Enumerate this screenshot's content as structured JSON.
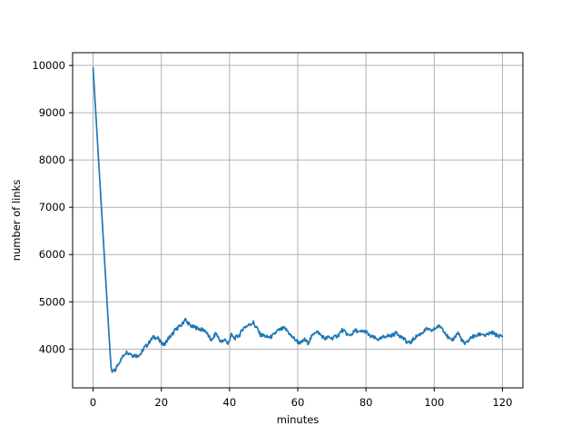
{
  "chart_data": {
    "type": "line",
    "title": "",
    "xlabel": "minutes",
    "ylabel": "number of links",
    "xlim": [
      -6,
      126
    ],
    "ylim": [
      3180,
      10270
    ],
    "xticks": [
      0,
      20,
      40,
      60,
      80,
      100,
      120
    ],
    "yticks": [
      4000,
      5000,
      6000,
      7000,
      8000,
      9000,
      10000
    ],
    "grid": true,
    "grid_color": "#b0b0b0",
    "spine_color": "#000000",
    "line_color": "#1f77b4",
    "line_width": 1.7,
    "legend": null,
    "noise": {
      "amplitude": 40,
      "start_t": 6,
      "subdivisions": 3
    },
    "points": [
      [
        0,
        9950
      ],
      [
        0.5,
        9345
      ],
      [
        1,
        8740
      ],
      [
        1.5,
        8135
      ],
      [
        2,
        7530
      ],
      [
        2.5,
        6925
      ],
      [
        3,
        6320
      ],
      [
        3.5,
        5715
      ],
      [
        4,
        5110
      ],
      [
        4.5,
        4505
      ],
      [
        5,
        3905
      ],
      [
        5.3,
        3600
      ],
      [
        5.6,
        3510
      ],
      [
        6,
        3565
      ],
      [
        6.4,
        3530
      ],
      [
        7,
        3635
      ],
      [
        7.5,
        3705
      ],
      [
        8,
        3760
      ],
      [
        8.5,
        3815
      ],
      [
        9,
        3875
      ],
      [
        9.5,
        3925
      ],
      [
        10,
        3940
      ],
      [
        10.5,
        3905
      ],
      [
        11,
        3920
      ],
      [
        11.5,
        3860
      ],
      [
        12,
        3875
      ],
      [
        12.5,
        3865
      ],
      [
        13,
        3855
      ],
      [
        13.5,
        3885
      ],
      [
        14,
        3900
      ],
      [
        14.5,
        3965
      ],
      [
        15,
        4035
      ],
      [
        15.5,
        4065
      ],
      [
        16,
        4095
      ],
      [
        16.5,
        4155
      ],
      [
        17,
        4195
      ],
      [
        17.5,
        4245
      ],
      [
        18,
        4260
      ],
      [
        18.5,
        4235
      ],
      [
        19,
        4230
      ],
      [
        19.5,
        4165
      ],
      [
        20,
        4150
      ],
      [
        20.5,
        4105
      ],
      [
        21,
        4095
      ],
      [
        21.5,
        4165
      ],
      [
        22,
        4225
      ],
      [
        22.5,
        4255
      ],
      [
        23,
        4295
      ],
      [
        23.5,
        4335
      ],
      [
        24,
        4400
      ],
      [
        24.5,
        4420
      ],
      [
        25,
        4480
      ],
      [
        25.5,
        4470
      ],
      [
        26,
        4515
      ],
      [
        26.5,
        4570
      ],
      [
        27,
        4650
      ],
      [
        27.5,
        4560
      ],
      [
        28,
        4550
      ],
      [
        28.5,
        4490
      ],
      [
        29,
        4480
      ],
      [
        29.5,
        4460
      ],
      [
        30,
        4465
      ],
      [
        30.5,
        4440
      ],
      [
        31,
        4435
      ],
      [
        31.5,
        4415
      ],
      [
        32,
        4410
      ],
      [
        32.5,
        4400
      ],
      [
        33,
        4385
      ],
      [
        33.5,
        4315
      ],
      [
        34,
        4255
      ],
      [
        34.5,
        4200
      ],
      [
        35,
        4195
      ],
      [
        35.5,
        4275
      ],
      [
        36,
        4345
      ],
      [
        36.5,
        4275
      ],
      [
        37,
        4205
      ],
      [
        37.5,
        4160
      ],
      [
        38,
        4145
      ],
      [
        38.5,
        4215
      ],
      [
        39,
        4185
      ],
      [
        39.5,
        4090
      ],
      [
        40,
        4200
      ],
      [
        40.5,
        4310
      ],
      [
        41,
        4255
      ],
      [
        41.5,
        4225
      ],
      [
        42,
        4255
      ],
      [
        42.5,
        4275
      ],
      [
        43,
        4305
      ],
      [
        43.5,
        4375
      ],
      [
        44,
        4445
      ],
      [
        44.5,
        4465
      ],
      [
        45,
        4485
      ],
      [
        45.5,
        4505
      ],
      [
        46,
        4525
      ],
      [
        46.5,
        4545
      ],
      [
        47,
        4565
      ],
      [
        47.5,
        4485
      ],
      [
        48,
        4455
      ],
      [
        48.5,
        4375
      ],
      [
        49,
        4305
      ],
      [
        49.5,
        4295
      ],
      [
        50,
        4285
      ],
      [
        50.5,
        4270
      ],
      [
        51,
        4255
      ],
      [
        51.5,
        4252
      ],
      [
        52,
        4250
      ],
      [
        52.5,
        4278
      ],
      [
        53,
        4305
      ],
      [
        53.5,
        4345
      ],
      [
        54,
        4385
      ],
      [
        54.5,
        4400
      ],
      [
        55,
        4415
      ],
      [
        55.5,
        4428
      ],
      [
        56,
        4440
      ],
      [
        56.5,
        4412
      ],
      [
        57,
        4385
      ],
      [
        57.5,
        4332
      ],
      [
        58,
        4280
      ],
      [
        58.5,
        4250
      ],
      [
        59,
        4220
      ],
      [
        59.5,
        4185
      ],
      [
        60,
        4150
      ],
      [
        60.5,
        4140
      ],
      [
        61,
        4130
      ],
      [
        61.5,
        4165
      ],
      [
        62,
        4200
      ],
      [
        62.5,
        4165
      ],
      [
        63,
        4130
      ],
      [
        63.5,
        4190
      ],
      [
        64,
        4250
      ],
      [
        64.5,
        4310
      ],
      [
        65,
        4370
      ],
      [
        65.5,
        4360
      ],
      [
        66,
        4350
      ],
      [
        66.5,
        4315
      ],
      [
        67,
        4280
      ],
      [
        67.5,
        4250
      ],
      [
        68,
        4220
      ],
      [
        68.5,
        4235
      ],
      [
        69,
        4250
      ],
      [
        69.5,
        4240
      ],
      [
        70,
        4230
      ],
      [
        70.5,
        4245
      ],
      [
        71,
        4260
      ],
      [
        71.5,
        4280
      ],
      [
        72,
        4300
      ],
      [
        72.5,
        4350
      ],
      [
        73,
        4400
      ],
      [
        73.5,
        4375
      ],
      [
        74,
        4350
      ],
      [
        74.5,
        4315
      ],
      [
        75,
        4280
      ],
      [
        75.5,
        4305
      ],
      [
        76,
        4330
      ],
      [
        76.5,
        4365
      ],
      [
        77,
        4400
      ],
      [
        77.5,
        4375
      ],
      [
        78,
        4350
      ],
      [
        78.5,
        4365
      ],
      [
        79,
        4380
      ],
      [
        79.5,
        4375
      ],
      [
        80,
        4370
      ],
      [
        80.5,
        4325
      ],
      [
        81,
        4280
      ],
      [
        81.5,
        4265
      ],
      [
        82,
        4250
      ],
      [
        82.5,
        4235
      ],
      [
        83,
        4220
      ],
      [
        83.5,
        4210
      ],
      [
        84,
        4200
      ],
      [
        84.5,
        4225
      ],
      [
        85,
        4250
      ],
      [
        85.5,
        4265
      ],
      [
        86,
        4280
      ],
      [
        86.5,
        4280
      ],
      [
        87,
        4280
      ],
      [
        87.5,
        4290
      ],
      [
        88,
        4300
      ],
      [
        88.5,
        4325
      ],
      [
        89,
        4350
      ],
      [
        89.5,
        4315
      ],
      [
        90,
        4280
      ],
      [
        90.5,
        4250
      ],
      [
        91,
        4220
      ],
      [
        91.5,
        4185
      ],
      [
        92,
        4150
      ],
      [
        92.5,
        4140
      ],
      [
        93,
        4130
      ],
      [
        93.5,
        4175
      ],
      [
        94,
        4220
      ],
      [
        94.5,
        4250
      ],
      [
        95,
        4280
      ],
      [
        95.5,
        4300
      ],
      [
        96,
        4320
      ],
      [
        96.5,
        4350
      ],
      [
        97,
        4380
      ],
      [
        97.5,
        4405
      ],
      [
        98,
        4430
      ],
      [
        98.5,
        4405
      ],
      [
        99,
        4380
      ],
      [
        99.5,
        4400
      ],
      [
        100,
        4420
      ],
      [
        100.5,
        4450
      ],
      [
        101,
        4480
      ],
      [
        101.5,
        4475
      ],
      [
        102,
        4470
      ],
      [
        102.5,
        4425
      ],
      [
        103,
        4380
      ],
      [
        103.5,
        4315
      ],
      [
        104,
        4250
      ],
      [
        104.5,
        4210
      ],
      [
        105,
        4170
      ],
      [
        105.5,
        4210
      ],
      [
        106,
        4250
      ],
      [
        106.5,
        4300
      ],
      [
        107,
        4350
      ],
      [
        107.5,
        4275
      ],
      [
        108,
        4200
      ],
      [
        108.5,
        4150
      ],
      [
        109,
        4100
      ],
      [
        109.5,
        4140
      ],
      [
        110,
        4180
      ],
      [
        110.5,
        4220
      ],
      [
        111,
        4260
      ],
      [
        111.5,
        4265
      ],
      [
        112,
        4270
      ],
      [
        112.5,
        4285
      ],
      [
        113,
        4300
      ],
      [
        113.5,
        4315
      ],
      [
        114,
        4330
      ],
      [
        114.5,
        4305
      ],
      [
        115,
        4280
      ],
      [
        115.5,
        4300
      ],
      [
        116,
        4320
      ],
      [
        116.5,
        4335
      ],
      [
        117,
        4350
      ],
      [
        117.5,
        4325
      ],
      [
        118,
        4300
      ],
      [
        118.5,
        4290
      ],
      [
        119,
        4280
      ],
      [
        119.5,
        4275
      ],
      [
        120,
        4270
      ]
    ]
  }
}
